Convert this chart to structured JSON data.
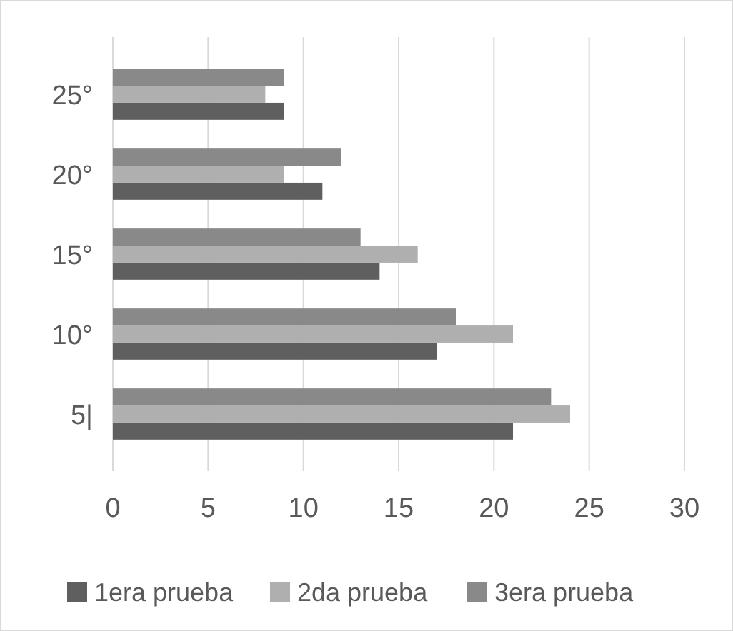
{
  "chart_data": {
    "type": "bar",
    "orientation": "horizontal",
    "categories": [
      "25°",
      "20°",
      "15°",
      "10°",
      "5|"
    ],
    "series": [
      {
        "name": "1era prueba",
        "color": "#5f5f5f",
        "values": [
          9,
          11,
          14,
          17,
          21
        ]
      },
      {
        "name": "2da prueba",
        "color": "#afafaf",
        "values": [
          8,
          9,
          16,
          21,
          24
        ]
      },
      {
        "name": "3era prueba",
        "color": "#898989",
        "values": [
          9,
          12,
          13,
          18,
          23
        ]
      }
    ],
    "xlim": [
      0,
      30
    ],
    "xticks": [
      0,
      5,
      10,
      15,
      20,
      25,
      30
    ],
    "grid": "x",
    "legend": "bottom"
  }
}
